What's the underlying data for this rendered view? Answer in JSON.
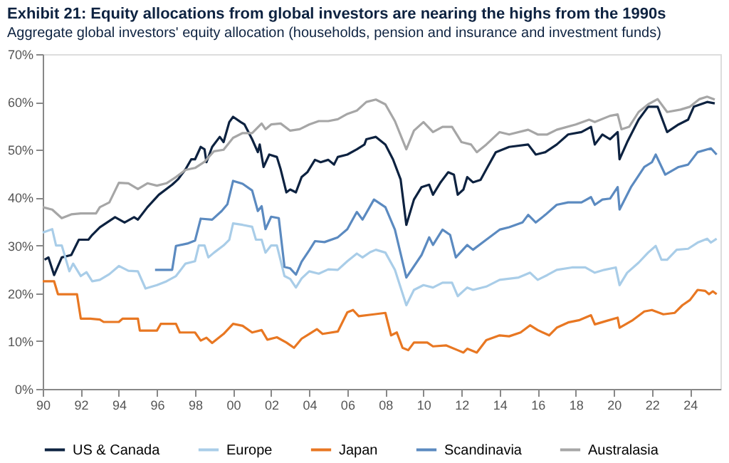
{
  "chart_data": {
    "type": "line",
    "title": "Exhibit 21: Equity allocations from global investors are nearing the highs from the 1990s",
    "subtitle": "Aggregate global investors' equity allocation (households, pension and insurance and investment funds)",
    "xlim": [
      1990,
      2025.6
    ],
    "xticks": [
      {
        "value": 1990,
        "label": "90"
      },
      {
        "value": 1992,
        "label": "92"
      },
      {
        "value": 1994,
        "label": "94"
      },
      {
        "value": 1996,
        "label": "96"
      },
      {
        "value": 1998,
        "label": "98"
      },
      {
        "value": 2000,
        "label": "00"
      },
      {
        "value": 2002,
        "label": "02"
      },
      {
        "value": 2004,
        "label": "04"
      },
      {
        "value": 2006,
        "label": "06"
      },
      {
        "value": 2008,
        "label": "08"
      },
      {
        "value": 2010,
        "label": "10"
      },
      {
        "value": 2012,
        "label": "12"
      },
      {
        "value": 2014,
        "label": "14"
      },
      {
        "value": 2016,
        "label": "16"
      },
      {
        "value": 2018,
        "label": "18"
      },
      {
        "value": 2020,
        "label": "20"
      },
      {
        "value": 2022,
        "label": "22"
      },
      {
        "value": 2024,
        "label": "24"
      }
    ],
    "ylim": [
      0,
      70
    ],
    "yticks": [
      {
        "value": 0,
        "label": "0%"
      },
      {
        "value": 10,
        "label": "10%"
      },
      {
        "value": 20,
        "label": "20%"
      },
      {
        "value": 30,
        "label": "30%"
      },
      {
        "value": 40,
        "label": "40%"
      },
      {
        "value": 50,
        "label": "50%"
      },
      {
        "value": 60,
        "label": "60%"
      },
      {
        "value": 70,
        "label": "70%"
      }
    ],
    "grid": false,
    "legend": "bottom",
    "marker": "none",
    "line_style": "solid",
    "series": [
      {
        "name": "US & Canada",
        "color": "#0d2240",
        "x": [
          1990.1,
          1990.3,
          1990.6,
          1991.0,
          1991.5,
          1991.9,
          1992.4,
          1992.6,
          1993.0,
          1993.8,
          1994.3,
          1994.8,
          1995.0,
          1995.5,
          1996.1,
          1996.8,
          1997.1,
          1997.5,
          1997.8,
          1998.0,
          1998.3,
          1998.5,
          1998.6,
          1998.9,
          1999.3,
          1999.5,
          1999.8,
          2000.0,
          2000.4,
          2000.6,
          2001.0,
          2001.3,
          2001.4,
          2001.6,
          2001.9,
          2002.3,
          2002.5,
          2002.8,
          2003.0,
          2003.3,
          2003.6,
          2003.9,
          2004.3,
          2004.6,
          2005.0,
          2005.3,
          2005.5,
          2006.0,
          2006.5,
          2006.9,
          2007.0,
          2007.5,
          2008.0,
          2008.4,
          2008.8,
          2009.1,
          2009.5,
          2009.9,
          2010.3,
          2010.5,
          2010.9,
          2011.3,
          2011.6,
          2011.8,
          2012.1,
          2012.3,
          2012.6,
          2013.0,
          2013.3,
          2013.8,
          2014.5,
          2015.5,
          2015.9,
          2016.4,
          2017.0,
          2017.6,
          2018.3,
          2018.8,
          2019.0,
          2019.4,
          2019.8,
          2020.2,
          2020.3,
          2020.7,
          2021.3,
          2021.8,
          2022.3,
          2022.8,
          2023.4,
          2023.9,
          2024.2,
          2024.9,
          2025.3
        ],
        "values": [
          27.0,
          27.5,
          23.8,
          27.5,
          28.0,
          31.2,
          31.2,
          32.2,
          33.8,
          35.9,
          34.8,
          35.9,
          35.4,
          38.0,
          40.6,
          42.7,
          43.8,
          45.9,
          48.0,
          48.0,
          50.6,
          50.1,
          47.4,
          50.6,
          52.7,
          51.6,
          55.8,
          56.9,
          55.8,
          55.3,
          52.2,
          49.5,
          51.1,
          46.4,
          49.0,
          48.5,
          45.9,
          41.1,
          41.7,
          41.1,
          44.3,
          45.3,
          47.9,
          47.4,
          47.9,
          46.9,
          48.5,
          49.0,
          50.1,
          51.1,
          52.2,
          52.7,
          51.1,
          48.0,
          43.8,
          34.3,
          39.6,
          42.2,
          42.7,
          40.6,
          43.2,
          45.3,
          44.8,
          40.6,
          41.7,
          44.3,
          43.2,
          43.7,
          45.9,
          49.5,
          50.6,
          51.1,
          49.0,
          49.5,
          51.1,
          53.2,
          53.7,
          54.8,
          51.1,
          53.2,
          52.2,
          53.7,
          48.0,
          51.6,
          56.3,
          59.0,
          59.0,
          53.7,
          55.3,
          56.3,
          59.0,
          60.0,
          59.7
        ]
      },
      {
        "name": "Europe",
        "color": "#a9cde8",
        "x": [
          1990.0,
          1990.5,
          1990.7,
          1991.0,
          1991.4,
          1991.6,
          1992.0,
          1992.3,
          1992.6,
          1993.0,
          1993.5,
          1994.0,
          1994.5,
          1995.0,
          1995.4,
          1996.0,
          1996.5,
          1997.0,
          1997.5,
          1998.0,
          1998.2,
          1998.5,
          1998.7,
          1999.0,
          1999.5,
          1999.8,
          2000.0,
          2000.5,
          2001.0,
          2001.2,
          2001.5,
          2001.7,
          2002.0,
          2002.3,
          2002.7,
          2003.0,
          2003.3,
          2003.6,
          2004.0,
          2004.5,
          2005.0,
          2005.5,
          2006.0,
          2006.5,
          2006.8,
          2007.2,
          2007.5,
          2008.0,
          2008.5,
          2009.1,
          2009.5,
          2010.0,
          2010.5,
          2011.0,
          2011.5,
          2011.8,
          2012.3,
          2012.6,
          2013.3,
          2014.0,
          2015.0,
          2015.6,
          2016.0,
          2016.5,
          2017.0,
          2017.8,
          2018.5,
          2019.0,
          2019.5,
          2020.1,
          2020.3,
          2020.7,
          2021.3,
          2021.8,
          2022.2,
          2022.5,
          2022.8,
          2023.3,
          2023.9,
          2024.4,
          2024.9,
          2025.1,
          2025.4
        ],
        "values": [
          32.7,
          33.4,
          30.0,
          30.0,
          24.6,
          26.2,
          23.6,
          24.4,
          22.5,
          22.8,
          24.0,
          25.7,
          24.7,
          24.6,
          21.0,
          21.7,
          22.5,
          23.6,
          26.2,
          26.7,
          30.0,
          30.0,
          27.5,
          28.5,
          30.0,
          31.2,
          34.6,
          34.3,
          33.9,
          31.2,
          31.2,
          28.5,
          30.0,
          30.0,
          23.6,
          23.0,
          21.2,
          23.1,
          24.6,
          24.1,
          25.0,
          24.9,
          26.7,
          28.3,
          27.5,
          28.6,
          29.1,
          28.5,
          24.9,
          17.5,
          20.7,
          21.7,
          21.2,
          22.2,
          22.2,
          19.4,
          21.2,
          20.7,
          21.4,
          22.8,
          23.3,
          24.3,
          22.8,
          23.8,
          24.9,
          25.4,
          25.4,
          24.3,
          24.9,
          25.4,
          21.7,
          24.3,
          26.4,
          28.5,
          29.9,
          27.0,
          27.0,
          29.1,
          29.3,
          30.6,
          31.4,
          30.6,
          31.4
        ]
      },
      {
        "name": "Japan",
        "color": "#e87722",
        "x": [
          1990.0,
          1990.6,
          1990.8,
          1991.8,
          1992.0,
          1992.5,
          1993.0,
          1993.2,
          1994.0,
          1994.2,
          1995.0,
          1995.1,
          1996.0,
          1996.2,
          1997.0,
          1997.2,
          1998.0,
          1998.3,
          1998.6,
          1998.9,
          1999.5,
          2000.0,
          2000.5,
          2001.0,
          2001.5,
          2001.8,
          2002.3,
          2002.8,
          2003.2,
          2003.6,
          2004.0,
          2004.4,
          2004.7,
          2005.5,
          2006.0,
          2006.3,
          2006.6,
          2007.4,
          2008.0,
          2008.3,
          2008.6,
          2008.9,
          2009.2,
          2009.5,
          2010.2,
          2010.5,
          2011.2,
          2011.8,
          2012.1,
          2012.3,
          2012.8,
          2013.3,
          2014.0,
          2014.5,
          2015.1,
          2015.6,
          2016.0,
          2016.6,
          2017.0,
          2017.6,
          2018.2,
          2018.8,
          2019.0,
          2019.6,
          2020.2,
          2020.3,
          2021.0,
          2021.6,
          2022.0,
          2022.6,
          2023.2,
          2023.6,
          2024.0,
          2024.4,
          2024.8,
          2025.0,
          2025.2,
          2025.4
        ],
        "values": [
          22.5,
          22.5,
          19.8,
          19.8,
          14.7,
          14.7,
          14.5,
          14.0,
          14.0,
          14.7,
          14.7,
          12.2,
          12.2,
          13.6,
          13.6,
          11.8,
          11.8,
          10.1,
          10.7,
          9.6,
          11.5,
          13.6,
          13.2,
          11.8,
          12.3,
          10.3,
          10.8,
          9.7,
          8.6,
          10.5,
          11.5,
          12.5,
          11.5,
          12.0,
          16.0,
          16.5,
          15.2,
          15.6,
          15.9,
          11.2,
          11.8,
          8.6,
          8.1,
          9.7,
          9.7,
          8.9,
          9.1,
          8.1,
          7.6,
          8.4,
          7.6,
          10.2,
          11.2,
          11.0,
          11.8,
          13.3,
          12.3,
          11.2,
          12.8,
          13.9,
          14.4,
          15.4,
          13.5,
          14.2,
          14.9,
          12.8,
          14.4,
          16.2,
          16.5,
          15.6,
          15.9,
          17.5,
          18.6,
          20.7,
          20.5,
          19.8,
          20.4,
          19.8
        ]
      },
      {
        "name": "Scandinavia",
        "color": "#5b8ac0",
        "x": [
          1995.9,
          1996.8,
          1997.0,
          1997.6,
          1998.0,
          1998.3,
          1998.9,
          1999.4,
          1999.7,
          2000.0,
          2000.5,
          2001.0,
          2001.3,
          2001.5,
          2001.7,
          2002.0,
          2002.4,
          2002.7,
          2003.0,
          2003.3,
          2003.6,
          2004.0,
          2004.3,
          2004.8,
          2005.5,
          2006.0,
          2006.5,
          2006.8,
          2007.4,
          2008.0,
          2008.5,
          2009.1,
          2009.9,
          2010.3,
          2010.5,
          2011.0,
          2011.4,
          2011.7,
          2012.3,
          2012.6,
          2013.3,
          2014.0,
          2014.5,
          2015.2,
          2015.5,
          2015.9,
          2016.4,
          2017.0,
          2017.6,
          2018.3,
          2018.8,
          2019.0,
          2019.4,
          2019.8,
          2020.2,
          2020.3,
          2020.9,
          2021.6,
          2022.0,
          2022.2,
          2022.7,
          2023.4,
          2023.9,
          2024.4,
          2025.1,
          2025.4
        ],
        "values": [
          24.9,
          24.9,
          29.9,
          30.4,
          31.0,
          35.6,
          35.4,
          37.2,
          38.6,
          43.5,
          42.9,
          41.5,
          37.2,
          38.2,
          33.4,
          36.0,
          35.7,
          25.5,
          25.2,
          23.9,
          26.6,
          29.0,
          30.9,
          30.7,
          31.7,
          33.4,
          37.0,
          35.4,
          39.6,
          38.0,
          33.3,
          23.3,
          28.0,
          31.7,
          30.1,
          33.3,
          32.2,
          27.5,
          30.1,
          29.1,
          31.2,
          33.3,
          33.8,
          34.8,
          36.4,
          34.8,
          36.4,
          38.5,
          39.0,
          39.0,
          40.1,
          38.5,
          39.6,
          39.8,
          42.2,
          37.5,
          42.2,
          46.4,
          47.4,
          49.0,
          44.8,
          46.4,
          46.9,
          49.5,
          50.3,
          49.0
        ]
      },
      {
        "name": "Australasia",
        "color": "#a6a6a6",
        "x": [
          1990.0,
          1990.5,
          1991.0,
          1991.5,
          1992.0,
          1992.8,
          1993.0,
          1993.5,
          1994.0,
          1994.5,
          1995.0,
          1995.5,
          1996.0,
          1996.5,
          1997.0,
          1997.5,
          1998.0,
          1998.5,
          1999.0,
          1999.5,
          2000.0,
          2000.5,
          2001.0,
          2001.5,
          2001.7,
          2002.0,
          2002.5,
          2003.0,
          2003.5,
          2004.0,
          2004.5,
          2005.0,
          2005.5,
          2006.0,
          2006.5,
          2007.0,
          2007.5,
          2008.0,
          2008.5,
          2009.1,
          2009.5,
          2010.0,
          2010.5,
          2011.0,
          2011.5,
          2012.0,
          2012.5,
          2012.8,
          2013.3,
          2014.0,
          2014.5,
          2015.5,
          2016.0,
          2016.5,
          2017.0,
          2018.0,
          2018.7,
          2019.0,
          2019.8,
          2020.2,
          2020.4,
          2020.8,
          2021.3,
          2021.8,
          2022.3,
          2022.8,
          2023.5,
          2024.0,
          2024.5,
          2024.9,
          2025.3
        ],
        "values": [
          38.0,
          37.5,
          35.7,
          36.5,
          36.7,
          36.7,
          38.0,
          39.0,
          43.1,
          43.0,
          41.8,
          43.0,
          42.5,
          43.0,
          44.3,
          45.8,
          46.2,
          47.5,
          49.7,
          50.0,
          52.5,
          53.5,
          53.5,
          55.5,
          54.3,
          55.3,
          55.5,
          54.0,
          54.3,
          55.3,
          56.0,
          56.0,
          56.4,
          57.5,
          58.2,
          60.0,
          60.5,
          59.5,
          56.0,
          50.1,
          54.0,
          55.8,
          53.7,
          54.8,
          54.8,
          51.6,
          51.1,
          49.5,
          51.1,
          53.7,
          53.2,
          54.2,
          53.2,
          53.2,
          54.2,
          55.3,
          56.3,
          55.8,
          57.1,
          57.4,
          54.3,
          54.8,
          57.9,
          59.5,
          60.6,
          57.9,
          58.4,
          59.0,
          60.6,
          61.1,
          60.5
        ]
      }
    ]
  }
}
